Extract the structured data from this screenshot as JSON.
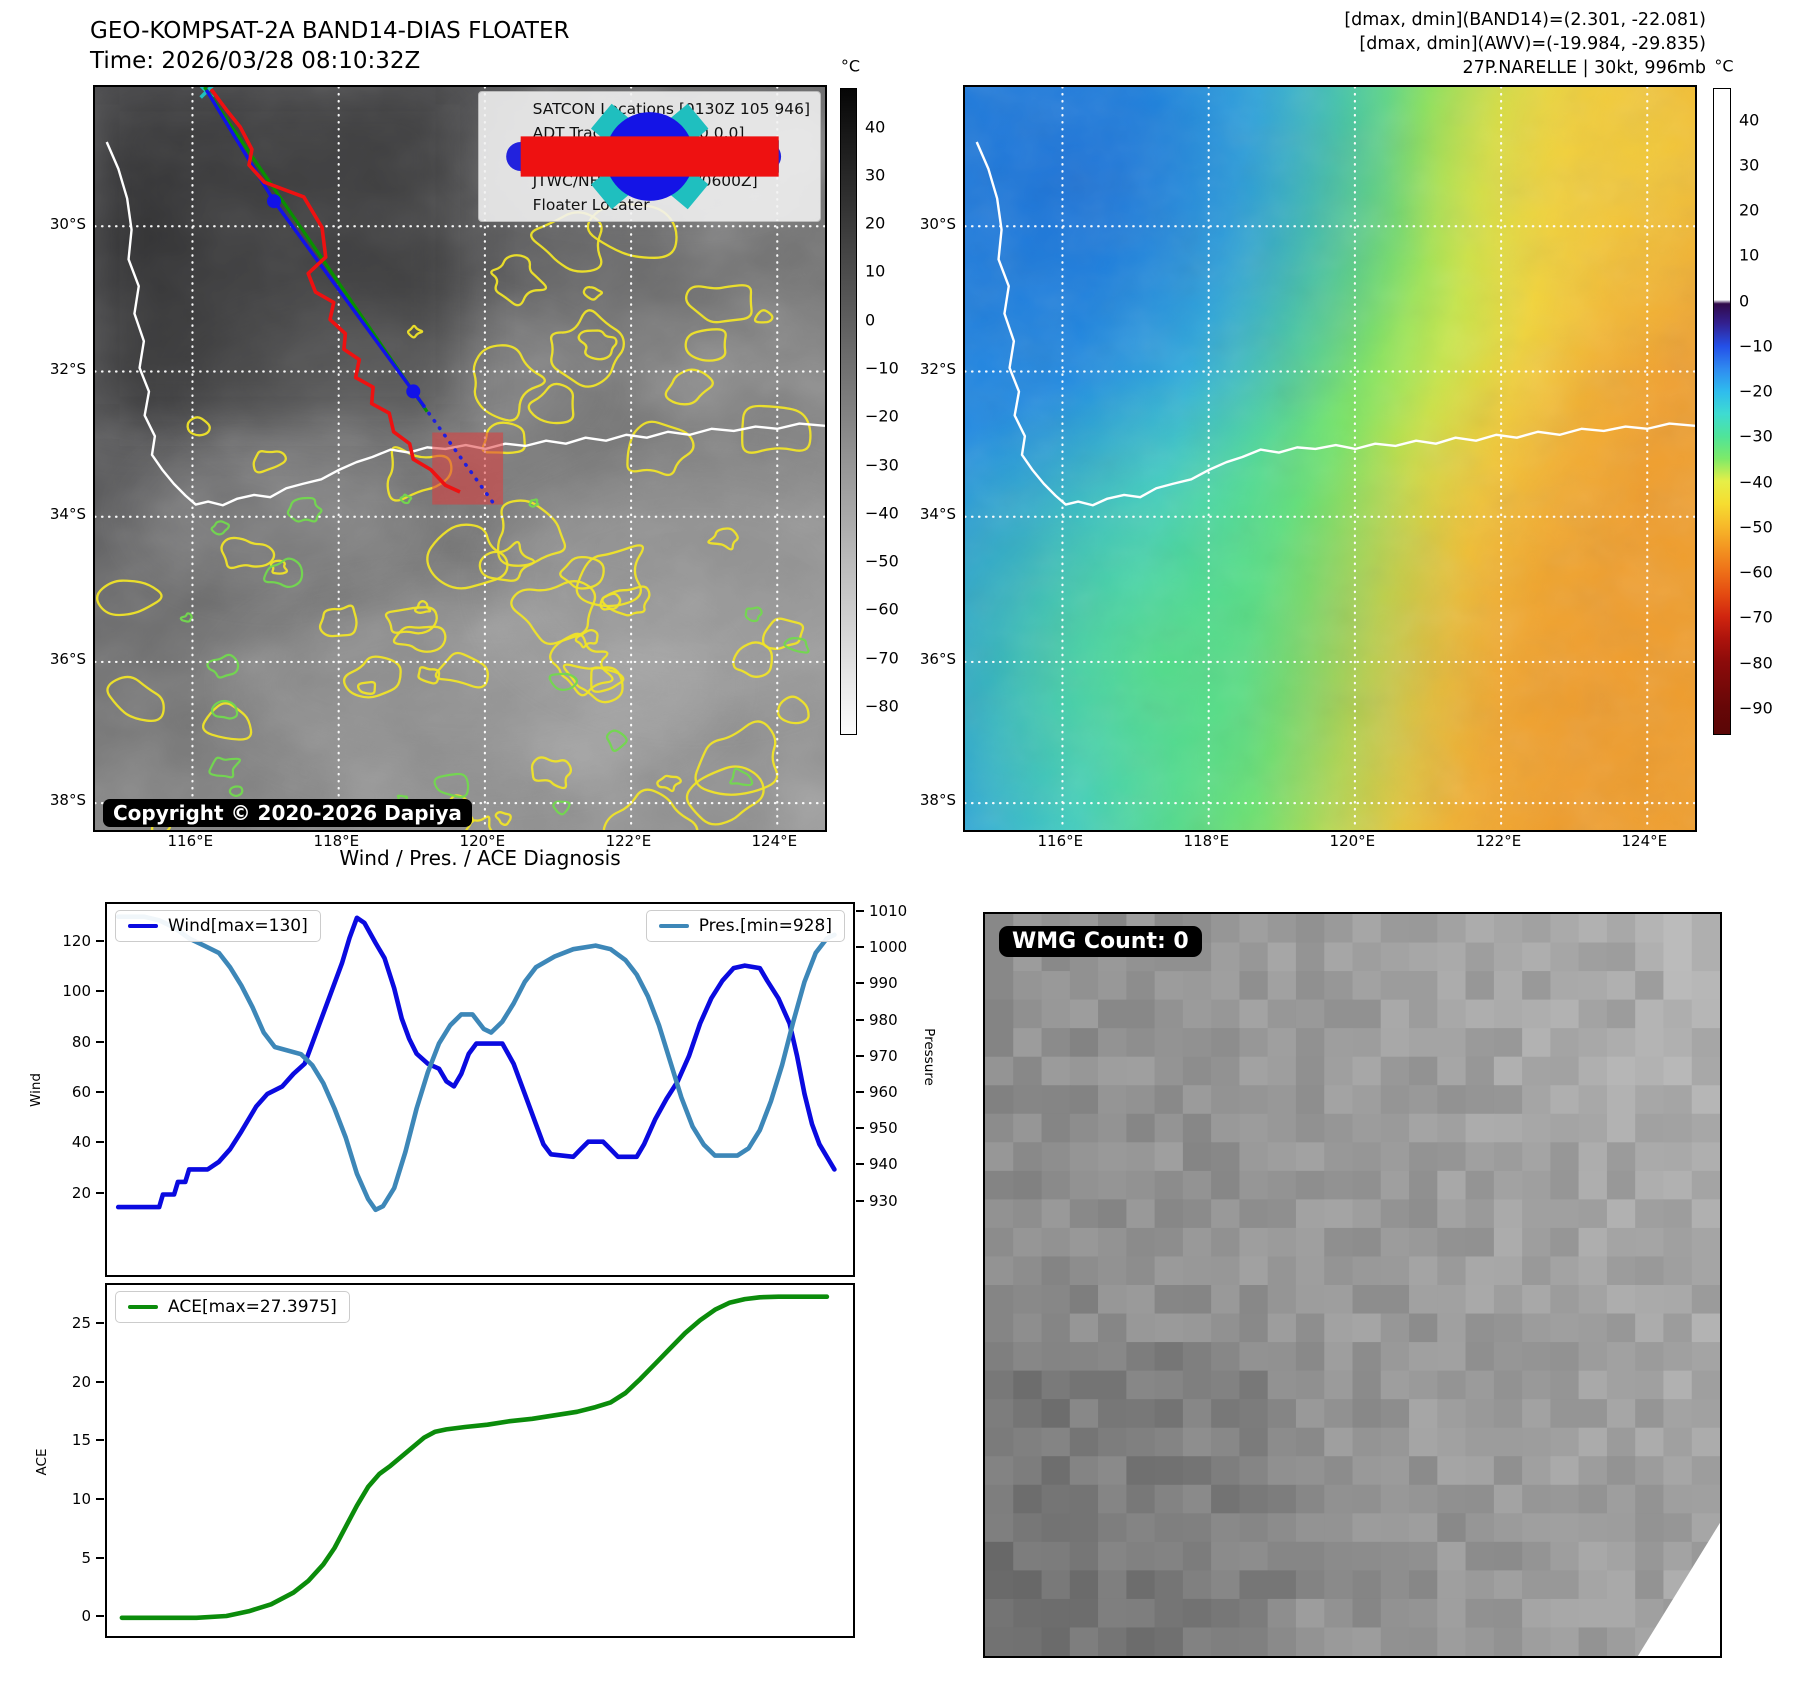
{
  "header": {
    "title": "GEO-KOMPSAT-2A BAND14-DIAS FLOATER",
    "time_line": "Time: 2026/03/28 08:10:32Z",
    "info_line1": "[dmax, dmin](BAND14)=(2.301, -22.081)",
    "info_line2": "[dmax, dmin](AWV)=(-19.984, -29.835)",
    "info_line3": "27P.NARELLE | 30kt, 996mb"
  },
  "maps": {
    "lat_ticks": [
      "30°S",
      "32°S",
      "34°S",
      "36°S",
      "38°S"
    ],
    "lon_ticks": [
      "116°E",
      "118°E",
      "120°E",
      "122°E",
      "124°E"
    ]
  },
  "left_map": {
    "copyright": "Copyright © 2020-2026 Dapiya",
    "legend": [
      {
        "id": "satcon",
        "marker": "cross",
        "color": "#1fbfbf",
        "label": "SATCON Locations [0130Z 105 946]"
      },
      {
        "id": "adt",
        "marker": "line",
        "color": "#089000",
        "label": "ADT Tracks [0740Z 0.0 0.0]"
      },
      {
        "id": "forecast",
        "marker": "dotted",
        "color": "#2222dd",
        "label": "JTWC/NHC Forecast [28/0000Z]"
      },
      {
        "id": "tracks",
        "marker": "line-dot",
        "color": "#1414e6",
        "label": "JTWC/NHC Tracks [28/0600Z]"
      },
      {
        "id": "floater",
        "marker": "line",
        "color": "#ee1111",
        "label": "Floater Locater"
      }
    ],
    "colorbar": {
      "unit": "°C",
      "range": [
        48,
        -86
      ],
      "ticks": [
        40,
        30,
        20,
        10,
        0,
        -10,
        -20,
        -30,
        -40,
        -50,
        -60,
        -70,
        -80
      ],
      "stops": [
        [
          0,
          "#060606"
        ],
        [
          1,
          "#fcfcfc"
        ]
      ]
    },
    "tracks": {
      "adt": [
        [
          0.15,
          0.0
        ],
        [
          0.455,
          0.437
        ]
      ],
      "jtwc": [
        [
          0.1526,
          0.004
        ],
        [
          0.2452,
          0.1537
        ],
        [
          0.436,
          0.4097
        ],
        [
          0.451,
          0.43
        ]
      ],
      "jtwc_markers": [
        [
          0.2452,
          0.1537
        ],
        [
          0.436,
          0.4097
        ]
      ],
      "forecast": [
        [
          0.436,
          0.4097
        ],
        [
          0.55,
          0.566
        ]
      ],
      "satcon": [
        [
          0.153,
          0.006
        ]
      ],
      "floater": [
        [
          0.159,
          0.003
        ],
        [
          0.181,
          0.032
        ],
        [
          0.199,
          0.054
        ],
        [
          0.215,
          0.084
        ],
        [
          0.211,
          0.105
        ],
        [
          0.232,
          0.128
        ],
        [
          0.286,
          0.148
        ],
        [
          0.311,
          0.189
        ],
        [
          0.316,
          0.229
        ],
        [
          0.292,
          0.251
        ],
        [
          0.302,
          0.276
        ],
        [
          0.327,
          0.29
        ],
        [
          0.322,
          0.313
        ],
        [
          0.343,
          0.332
        ],
        [
          0.341,
          0.353
        ],
        [
          0.362,
          0.367
        ],
        [
          0.357,
          0.391
        ],
        [
          0.381,
          0.404
        ],
        [
          0.379,
          0.426
        ],
        [
          0.403,
          0.439
        ],
        [
          0.409,
          0.464
        ],
        [
          0.431,
          0.48
        ],
        [
          0.436,
          0.501
        ],
        [
          0.46,
          0.515
        ],
        [
          0.48,
          0.536
        ],
        [
          0.5,
          0.545
        ]
      ],
      "floater_box": [
        0.462,
        0.465,
        0.097,
        0.097
      ]
    }
  },
  "right_map": {
    "colorbar": {
      "unit": "°C",
      "range": [
        47,
        -96
      ],
      "ticks": [
        40,
        30,
        20,
        10,
        0,
        -10,
        -20,
        -30,
        -40,
        -50,
        -60,
        -70,
        -80,
        -90
      ],
      "stops": [
        [
          0,
          "#ffffff"
        ],
        [
          0.327,
          "#ffffff"
        ],
        [
          0.333,
          "#31094a"
        ],
        [
          0.363,
          "#33208f"
        ],
        [
          0.399,
          "#2450e8"
        ],
        [
          0.434,
          "#2f8bf0"
        ],
        [
          0.469,
          "#2fbcee"
        ],
        [
          0.503,
          "#3edbd2"
        ],
        [
          0.538,
          "#4fe49a"
        ],
        [
          0.573,
          "#7dea69"
        ],
        [
          0.608,
          "#e6ef48"
        ],
        [
          0.643,
          "#f6dd31"
        ],
        [
          0.678,
          "#f7b92a"
        ],
        [
          0.713,
          "#f39421"
        ],
        [
          0.748,
          "#ee7018"
        ],
        [
          0.783,
          "#e44b11"
        ],
        [
          0.818,
          "#d0250f"
        ],
        [
          0.853,
          "#ac130c"
        ],
        [
          0.888,
          "#8c0b0a"
        ],
        [
          0.958,
          "#660707"
        ],
        [
          1,
          "#5a0606"
        ]
      ]
    }
  },
  "charts_title": "Wind / Pres. / ACE Diagnosis",
  "chart_data": [
    {
      "type": "line",
      "title": "Wind / Pres. / ACE Diagnosis",
      "legend_left": "Wind[max=130]",
      "legend_right": "Pres.[min=928]",
      "ylabel_left": "Wind",
      "ylabel_right": "Pressure",
      "yticks_left": [
        20,
        40,
        60,
        80,
        100,
        120
      ],
      "yticks_right": [
        930,
        940,
        950,
        960,
        970,
        980,
        990,
        1000,
        1010
      ],
      "ylim_left": [
        -12,
        135.5
      ],
      "ylim_right": [
        910,
        1012.5
      ],
      "grid": false,
      "series": [
        {
          "name": "Wind",
          "axis": "left",
          "color": "#0a0ae0",
          "points": [
            [
              0.015,
              15
            ],
            [
              0.06,
              15
            ],
            [
              0.07,
              15
            ],
            [
              0.075,
              20
            ],
            [
              0.09,
              20
            ],
            [
              0.095,
              25
            ],
            [
              0.105,
              25
            ],
            [
              0.11,
              30
            ],
            [
              0.135,
              30
            ],
            [
              0.15,
              33
            ],
            [
              0.165,
              38
            ],
            [
              0.18,
              45
            ],
            [
              0.2,
              55
            ],
            [
              0.215,
              60
            ],
            [
              0.235,
              63
            ],
            [
              0.25,
              68
            ],
            [
              0.265,
              72
            ],
            [
              0.275,
              80
            ],
            [
              0.285,
              88
            ],
            [
              0.3,
              100
            ],
            [
              0.315,
              112
            ],
            [
              0.325,
              122
            ],
            [
              0.335,
              130
            ],
            [
              0.345,
              128
            ],
            [
              0.36,
              120
            ],
            [
              0.372,
              114
            ],
            [
              0.385,
              102
            ],
            [
              0.395,
              90
            ],
            [
              0.405,
              82
            ],
            [
              0.415,
              76
            ],
            [
              0.43,
              72
            ],
            [
              0.445,
              70
            ],
            [
              0.455,
              65
            ],
            [
              0.465,
              63
            ],
            [
              0.475,
              68
            ],
            [
              0.485,
              76
            ],
            [
              0.495,
              80
            ],
            [
              0.53,
              80
            ],
            [
              0.545,
              72
            ],
            [
              0.56,
              60
            ],
            [
              0.575,
              48
            ],
            [
              0.585,
              40
            ],
            [
              0.595,
              36
            ],
            [
              0.625,
              35
            ],
            [
              0.635,
              38
            ],
            [
              0.645,
              41
            ],
            [
              0.665,
              41
            ],
            [
              0.675,
              38
            ],
            [
              0.685,
              35
            ],
            [
              0.71,
              35
            ],
            [
              0.72,
              40
            ],
            [
              0.735,
              50
            ],
            [
              0.75,
              58
            ],
            [
              0.765,
              65
            ],
            [
              0.78,
              75
            ],
            [
              0.795,
              88
            ],
            [
              0.81,
              98
            ],
            [
              0.825,
              105
            ],
            [
              0.84,
              110
            ],
            [
              0.855,
              111
            ],
            [
              0.875,
              110
            ],
            [
              0.885,
              105
            ],
            [
              0.9,
              98
            ],
            [
              0.915,
              88
            ],
            [
              0.925,
              75
            ],
            [
              0.935,
              60
            ],
            [
              0.945,
              48
            ],
            [
              0.955,
              40
            ],
            [
              0.965,
              35
            ],
            [
              0.975,
              30
            ]
          ]
        },
        {
          "name": "Pres.",
          "axis": "right",
          "color": "#3d87b8",
          "points": [
            [
              0.015,
              1009
            ],
            [
              0.05,
              1009
            ],
            [
              0.07,
              1008
            ],
            [
              0.09,
              1006
            ],
            [
              0.11,
              1003
            ],
            [
              0.13,
              1001
            ],
            [
              0.15,
              999
            ],
            [
              0.165,
              995
            ],
            [
              0.18,
              990
            ],
            [
              0.195,
              984
            ],
            [
              0.21,
              977
            ],
            [
              0.225,
              973
            ],
            [
              0.26,
              971
            ],
            [
              0.275,
              968
            ],
            [
              0.29,
              963
            ],
            [
              0.305,
              956
            ],
            [
              0.32,
              948
            ],
            [
              0.335,
              938
            ],
            [
              0.35,
              931
            ],
            [
              0.36,
              928
            ],
            [
              0.37,
              929
            ],
            [
              0.385,
              934
            ],
            [
              0.4,
              944
            ],
            [
              0.415,
              956
            ],
            [
              0.43,
              966
            ],
            [
              0.445,
              974
            ],
            [
              0.46,
              979
            ],
            [
              0.475,
              982
            ],
            [
              0.49,
              982
            ],
            [
              0.505,
              978
            ],
            [
              0.515,
              977
            ],
            [
              0.53,
              980
            ],
            [
              0.545,
              985
            ],
            [
              0.56,
              991
            ],
            [
              0.575,
              995
            ],
            [
              0.6,
              998
            ],
            [
              0.625,
              1000
            ],
            [
              0.655,
              1001
            ],
            [
              0.675,
              1000
            ],
            [
              0.695,
              997
            ],
            [
              0.71,
              993
            ],
            [
              0.725,
              987
            ],
            [
              0.74,
              979
            ],
            [
              0.755,
              969
            ],
            [
              0.77,
              959
            ],
            [
              0.785,
              951
            ],
            [
              0.8,
              946
            ],
            [
              0.815,
              943
            ],
            [
              0.845,
              943
            ],
            [
              0.86,
              945
            ],
            [
              0.875,
              950
            ],
            [
              0.89,
              958
            ],
            [
              0.905,
              968
            ],
            [
              0.92,
              980
            ],
            [
              0.935,
              991
            ],
            [
              0.95,
              999
            ],
            [
              0.965,
              1003
            ],
            [
              0.975,
              1004
            ]
          ]
        }
      ]
    },
    {
      "type": "line",
      "legend_left": "ACE[max=27.3975]",
      "ylabel_left": "ACE",
      "yticks_left": [
        0,
        5,
        10,
        15,
        20,
        25
      ],
      "ylim_left": [
        -1.5,
        28.4
      ],
      "grid": false,
      "series": [
        {
          "name": "ACE",
          "axis": "left",
          "color": "#0b8c0b",
          "points": [
            [
              0.02,
              0.05
            ],
            [
              0.12,
              0.05
            ],
            [
              0.16,
              0.2
            ],
            [
              0.19,
              0.6
            ],
            [
              0.22,
              1.2
            ],
            [
              0.25,
              2.2
            ],
            [
              0.27,
              3.2
            ],
            [
              0.29,
              4.6
            ],
            [
              0.305,
              6.0
            ],
            [
              0.32,
              7.8
            ],
            [
              0.335,
              9.6
            ],
            [
              0.35,
              11.2
            ],
            [
              0.365,
              12.3
            ],
            [
              0.38,
              13.0
            ],
            [
              0.395,
              13.8
            ],
            [
              0.41,
              14.6
            ],
            [
              0.425,
              15.4
            ],
            [
              0.44,
              15.9
            ],
            [
              0.455,
              16.1
            ],
            [
              0.48,
              16.3
            ],
            [
              0.51,
              16.5
            ],
            [
              0.54,
              16.8
            ],
            [
              0.57,
              17.0
            ],
            [
              0.6,
              17.3
            ],
            [
              0.63,
              17.6
            ],
            [
              0.655,
              18.0
            ],
            [
              0.675,
              18.4
            ],
            [
              0.695,
              19.2
            ],
            [
              0.715,
              20.4
            ],
            [
              0.735,
              21.7
            ],
            [
              0.755,
              23.0
            ],
            [
              0.775,
              24.3
            ],
            [
              0.795,
              25.4
            ],
            [
              0.815,
              26.3
            ],
            [
              0.835,
              26.9
            ],
            [
              0.855,
              27.2
            ],
            [
              0.875,
              27.35
            ],
            [
              0.9,
              27.4
            ],
            [
              0.94,
              27.4
            ],
            [
              0.965,
              27.4
            ]
          ]
        }
      ]
    }
  ],
  "wmg": {
    "badge": "WMG Count: 0"
  }
}
